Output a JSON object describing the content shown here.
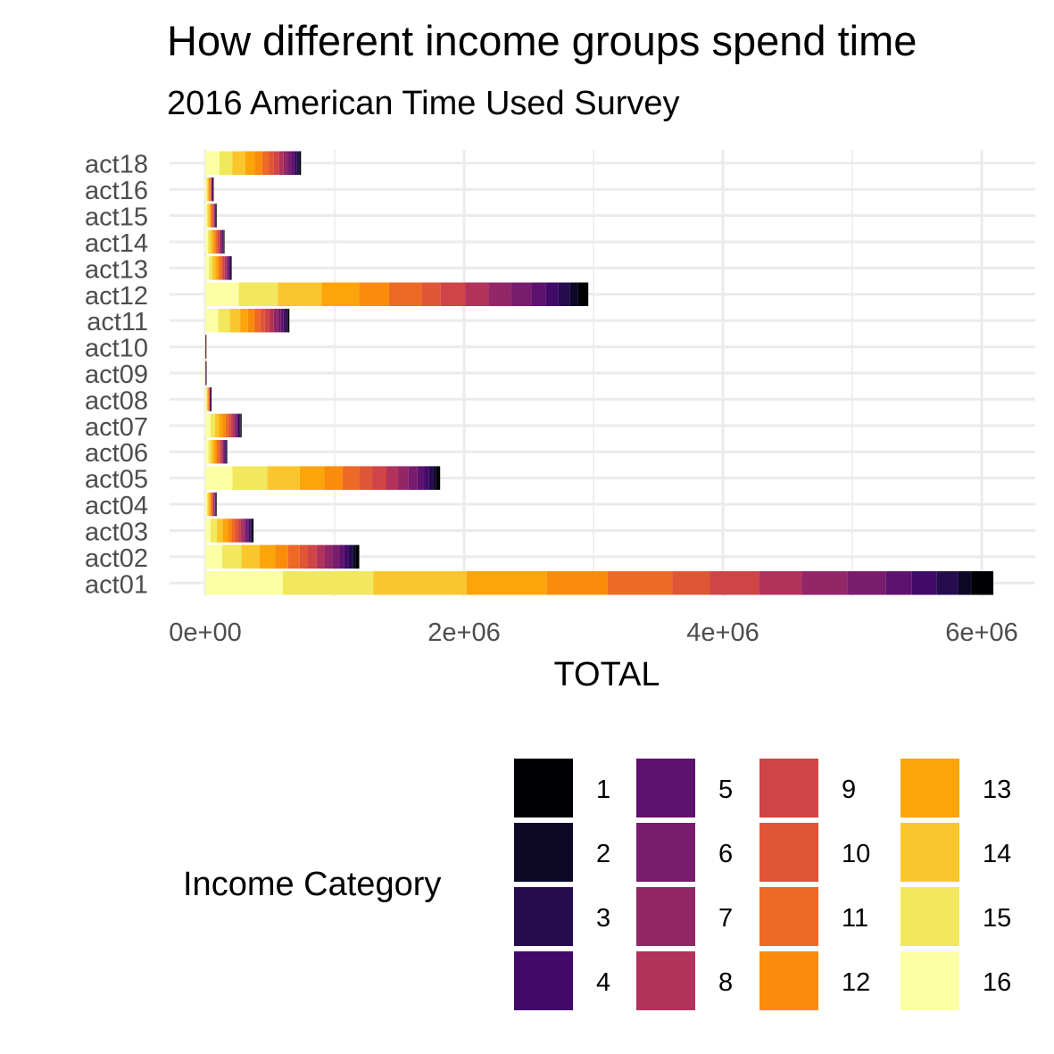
{
  "title": "How different income groups spend time",
  "subtitle": "2016 American Time Used Survey",
  "chart_data": {
    "type": "bar",
    "orientation": "horizontal",
    "stacked": true,
    "xlabel": "TOTAL",
    "ylabel": "",
    "xlim": [
      0,
      6400000
    ],
    "x_ticks": [
      "0e+00",
      "2e+06",
      "4e+06",
      "6e+06"
    ],
    "x_tick_values": [
      0,
      2000000,
      4000000,
      6000000
    ],
    "grid": true,
    "legend_position": "bottom",
    "legend_title": "Income Category",
    "categories": [
      "act01",
      "act02",
      "act03",
      "act04",
      "act05",
      "act06",
      "act07",
      "act08",
      "act09",
      "act10",
      "act11",
      "act12",
      "act13",
      "act14",
      "act15",
      "act16",
      "act18"
    ],
    "stack_order_from_zero": [
      "16",
      "15",
      "14",
      "13",
      "12",
      "11",
      "10",
      "9",
      "8",
      "7",
      "6",
      "5",
      "4",
      "3",
      "2",
      "1"
    ],
    "series": [
      {
        "name": "16",
        "color": "#FCFFA4",
        "values": [
          600000,
          130000,
          40000,
          12000,
          210000,
          25000,
          40000,
          8000,
          700,
          600,
          100000,
          260000,
          30000,
          20000,
          12000,
          10000,
          110000
        ]
      },
      {
        "name": "15",
        "color": "#F1E85E",
        "values": [
          700000,
          150000,
          50000,
          10000,
          270000,
          20000,
          35000,
          6000,
          700,
          600,
          90000,
          300000,
          25000,
          18000,
          11000,
          8000,
          100000
        ]
      },
      {
        "name": "14",
        "color": "#FAC62D",
        "values": [
          720000,
          140000,
          45000,
          9000,
          250000,
          18000,
          32000,
          5000,
          600,
          500,
          80000,
          340000,
          22000,
          16000,
          10000,
          7000,
          100000
        ]
      },
      {
        "name": "13",
        "color": "#FCA50A",
        "values": [
          620000,
          120000,
          38000,
          8000,
          190000,
          16000,
          28000,
          4000,
          500,
          400,
          60000,
          290000,
          18000,
          14000,
          8000,
          6000,
          70000
        ]
      },
      {
        "name": "12",
        "color": "#F98C0A",
        "values": [
          470000,
          100000,
          30000,
          7000,
          140000,
          14000,
          23000,
          3000,
          400,
          300,
          50000,
          230000,
          16000,
          12000,
          7000,
          5000,
          60000
        ]
      },
      {
        "name": "11",
        "color": "#ED6925",
        "values": [
          500000,
          90000,
          28000,
          6000,
          130000,
          12000,
          20000,
          3000,
          400,
          300,
          45000,
          250000,
          15000,
          11000,
          6000,
          4000,
          50000
        ]
      },
      {
        "name": "10",
        "color": "#E05536",
        "values": [
          290000,
          60000,
          20000,
          5000,
          100000,
          10000,
          16000,
          2500,
          300,
          200,
          35000,
          150000,
          12000,
          9000,
          5000,
          3000,
          40000
        ]
      },
      {
        "name": "9",
        "color": "#CF4446",
        "values": [
          380000,
          70000,
          22000,
          5000,
          110000,
          10000,
          16000,
          2500,
          300,
          200,
          40000,
          190000,
          12000,
          9000,
          5000,
          3000,
          40000
        ]
      },
      {
        "name": "8",
        "color": "#B1325A",
        "values": [
          330000,
          60000,
          18000,
          4000,
          90000,
          8000,
          13000,
          2000,
          200,
          200,
          30000,
          180000,
          10000,
          8000,
          4000,
          3000,
          35000
        ]
      },
      {
        "name": "7",
        "color": "#932667",
        "values": [
          350000,
          60000,
          18000,
          4000,
          80000,
          8000,
          12000,
          2000,
          200,
          200,
          30000,
          170000,
          10000,
          7000,
          4000,
          3000,
          30000
        ]
      },
      {
        "name": "6",
        "color": "#781C6D",
        "values": [
          300000,
          55000,
          16000,
          4000,
          70000,
          7000,
          11000,
          2000,
          200,
          200,
          25000,
          160000,
          9000,
          6000,
          3500,
          2500,
          30000
        ]
      },
      {
        "name": "5",
        "color": "#5E126F",
        "values": [
          200000,
          40000,
          12000,
          3000,
          50000,
          6000,
          9000,
          1500,
          200,
          100,
          20000,
          110000,
          7000,
          5000,
          3000,
          2000,
          20000
        ]
      },
      {
        "name": "4",
        "color": "#420A68",
        "values": [
          190000,
          35000,
          10000,
          3000,
          40000,
          5000,
          8000,
          1500,
          100,
          100,
          15000,
          100000,
          6000,
          4000,
          2500,
          2000,
          20000
        ]
      },
      {
        "name": "3",
        "color": "#240C4F",
        "values": [
          170000,
          30000,
          9000,
          2500,
          35000,
          4000,
          7000,
          1000,
          100,
          100,
          12000,
          90000,
          5000,
          4000,
          2000,
          1500,
          15000
        ]
      },
      {
        "name": "2",
        "color": "#0C0826",
        "values": [
          100000,
          20000,
          7000,
          2000,
          20000,
          3000,
          5000,
          1000,
          100,
          100,
          8000,
          60000,
          3000,
          3000,
          1500,
          1000,
          10000
        ]
      },
      {
        "name": "1",
        "color": "#000004",
        "values": [
          170000,
          30000,
          10000,
          3000,
          30000,
          4000,
          6000,
          1000,
          100,
          100,
          10000,
          80000,
          4000,
          3000,
          2000,
          1500,
          10000
        ]
      }
    ]
  },
  "legend": {
    "title": "Income Category",
    "columns": [
      [
        {
          "label": "1",
          "color": "#000004"
        },
        {
          "label": "2",
          "color": "#0C0826"
        },
        {
          "label": "3",
          "color": "#240C4F"
        },
        {
          "label": "4",
          "color": "#420A68"
        }
      ],
      [
        {
          "label": "5",
          "color": "#5E126F"
        },
        {
          "label": "6",
          "color": "#781C6D"
        },
        {
          "label": "7",
          "color": "#932667"
        },
        {
          "label": "8",
          "color": "#B1325A"
        }
      ],
      [
        {
          "label": "9",
          "color": "#CF4446"
        },
        {
          "label": "10",
          "color": "#E05536"
        },
        {
          "label": "11",
          "color": "#ED6925"
        },
        {
          "label": "12",
          "color": "#F98C0A"
        }
      ],
      [
        {
          "label": "13",
          "color": "#FCA50A"
        },
        {
          "label": "14",
          "color": "#FAC62D"
        },
        {
          "label": "15",
          "color": "#F1E85E"
        },
        {
          "label": "16",
          "color": "#FCFFA4"
        }
      ]
    ]
  },
  "colors": {
    "grid": "#EBEBEB",
    "tick_text": "#4D4D4D"
  }
}
